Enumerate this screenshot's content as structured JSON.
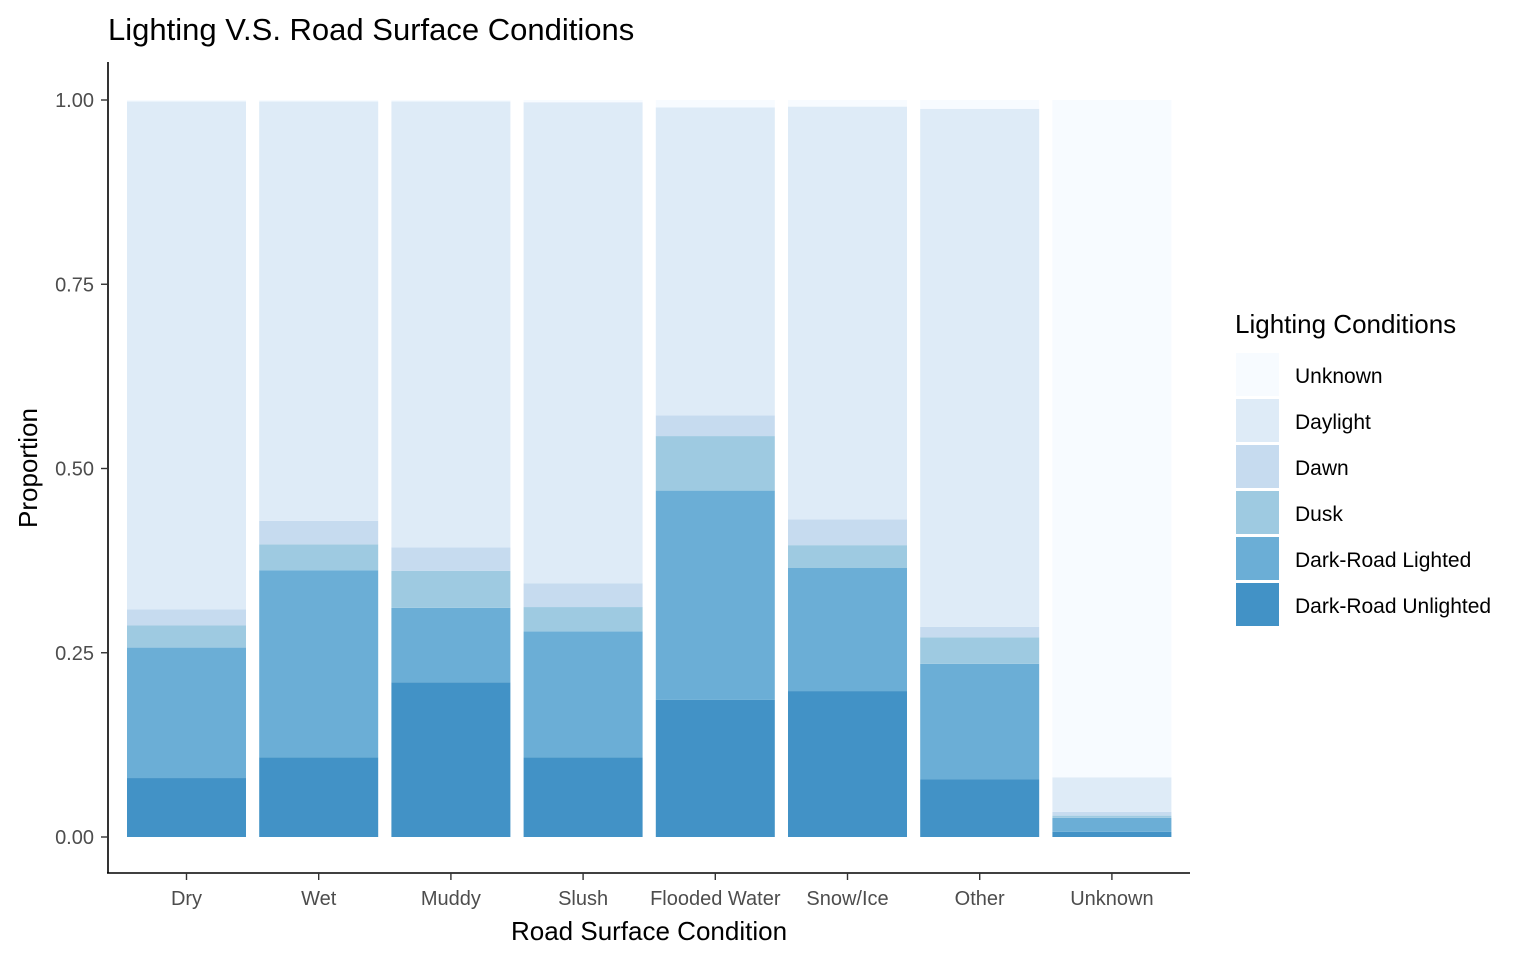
{
  "chart_data": {
    "type": "bar",
    "stacked": true,
    "title": "Lighting V.S. Road Surface Conditions",
    "xlabel": "Road Surface Condition",
    "ylabel": "Proportion",
    "ylim": [
      0,
      1
    ],
    "yticks": [
      "0.00",
      "0.25",
      "0.50",
      "0.75",
      "1.00"
    ],
    "categories": [
      "Dry",
      "Wet",
      "Muddy",
      "Slush",
      "Flooded Water",
      "Snow/Ice",
      "Other",
      "Unknown"
    ],
    "legend": {
      "title": "Lighting Conditions",
      "position": "right"
    },
    "grid": false,
    "series": [
      {
        "name": "Dark-Road Unlighted",
        "color": "#4292c6",
        "values": [
          0.08,
          0.108,
          0.21,
          0.108,
          0.186,
          0.198,
          0.078,
          0.007
        ]
      },
      {
        "name": "Dark-Road Lighted",
        "color": "#6baed6",
        "values": [
          0.177,
          0.254,
          0.101,
          0.171,
          0.284,
          0.167,
          0.157,
          0.019
        ]
      },
      {
        "name": "Dusk",
        "color": "#9ecae1",
        "values": [
          0.03,
          0.035,
          0.05,
          0.033,
          0.074,
          0.031,
          0.036,
          0.003
        ]
      },
      {
        "name": "Dawn",
        "color": "#c6dbef",
        "values": [
          0.022,
          0.032,
          0.032,
          0.032,
          0.028,
          0.035,
          0.014,
          0.005
        ]
      },
      {
        "name": "Daylight",
        "color": "#deebf7",
        "values": [
          0.689,
          0.569,
          0.605,
          0.653,
          0.418,
          0.56,
          0.703,
          0.047
        ]
      },
      {
        "name": "Unknown",
        "color": "#f7fbff",
        "values": [
          0.002,
          0.002,
          0.002,
          0.003,
          0.01,
          0.009,
          0.012,
          0.919
        ]
      }
    ],
    "legend_order": [
      "Unknown",
      "Daylight",
      "Dawn",
      "Dusk",
      "Dark-Road Lighted",
      "Dark-Road Unlighted"
    ]
  }
}
